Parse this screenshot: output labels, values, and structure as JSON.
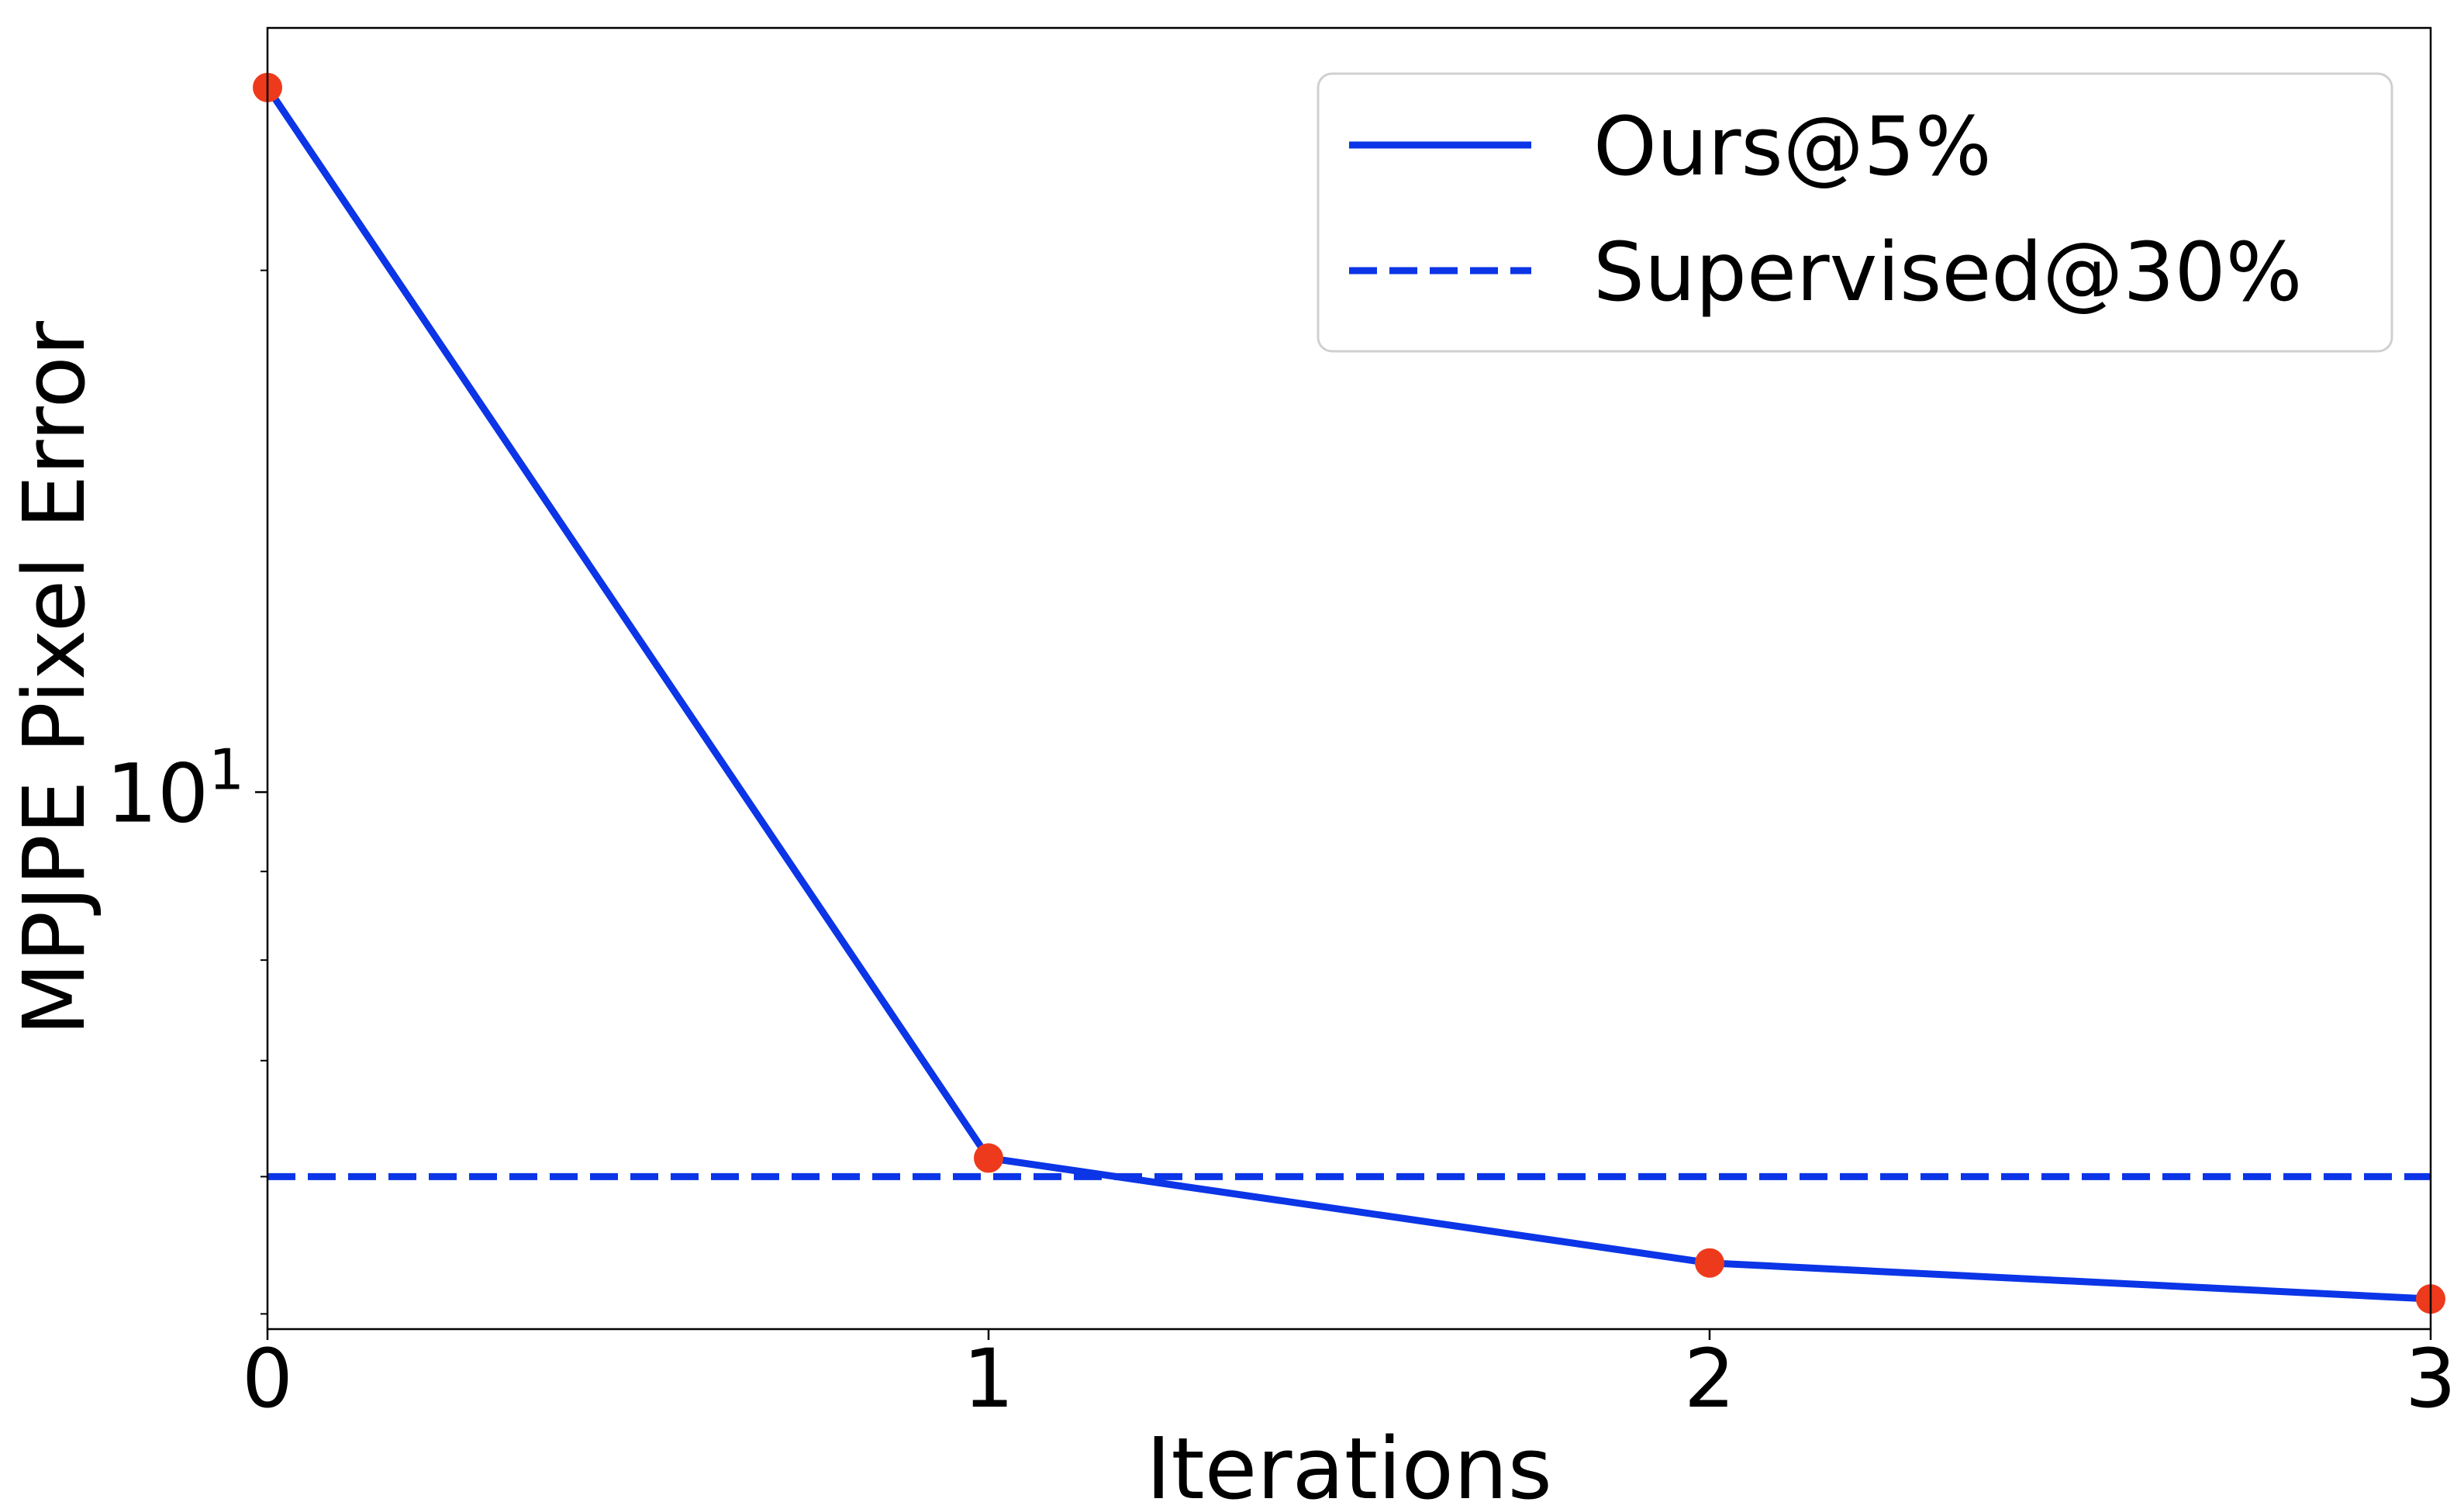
{
  "chart_data": {
    "type": "line",
    "xlabel": "Iterations",
    "ylabel": "MPJPE Pixel Error",
    "xlim": [
      0,
      3
    ],
    "ylim": [
      4.9,
      27.6
    ],
    "yscale": "log",
    "x_ticks": [
      0,
      1,
      2,
      3
    ],
    "x_tick_labels": [
      "0",
      "1",
      "2",
      "3"
    ],
    "y_tick_labels": [
      {
        "value": 10,
        "base": "10",
        "exp": "1"
      }
    ],
    "y_minor_ticks": [
      5,
      6,
      7,
      8,
      9,
      20
    ],
    "grid": false,
    "legend_position": "top-right",
    "series": [
      {
        "name": "Ours@5%",
        "style": "solid",
        "color": "#0b35e6",
        "marker_color": "#ee3a1c",
        "x": [
          0,
          1,
          2,
          3
        ],
        "y": [
          25.5,
          6.15,
          5.35,
          5.1
        ]
      }
    ],
    "reference_lines": [
      {
        "name": "Supervised@30%",
        "style": "dashed",
        "color": "#0b35e6",
        "y": 6.0
      }
    ]
  }
}
